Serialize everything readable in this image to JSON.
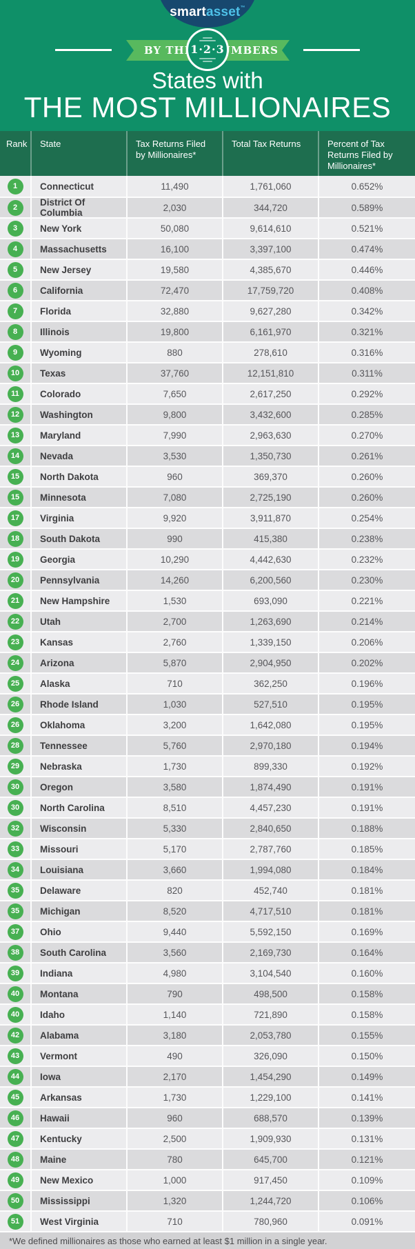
{
  "logo": {
    "smart": "smart",
    "asset": "asset",
    "trademark": "™",
    "dome_color": "#17486e",
    "asset_color": "#4ec1e8"
  },
  "banner": {
    "by_the": "BY THE",
    "numbers": "NUMBERS",
    "circle_text": "1·2·3",
    "ribbon_color": "#58b95e"
  },
  "title": {
    "line1": "States with",
    "line2": "THE MOST MILLIONAIRES"
  },
  "colors": {
    "page_background": "#0f9068",
    "table_header_background": "#1e6e4f",
    "rank_badge": "#47b052",
    "row_light": "#ececee",
    "row_dark": "#dbdbdd",
    "footnote_background": "#d2d2d4"
  },
  "footnote": "*We defined millionaires as those who earned at least $1 million in a single year.",
  "chart_data": {
    "type": "table",
    "title": "States with THE MOST MILLIONAIRES",
    "columns": [
      "Rank",
      "State",
      "Tax Returns Filed by Millionaires*",
      "Total Tax Returns",
      "Percent of Tax Returns Filed by Millionaires*"
    ],
    "rows": [
      [
        "1",
        "Connecticut",
        "11,490",
        "1,761,060",
        "0.652%"
      ],
      [
        "2",
        "District Of Columbia",
        "2,030",
        "344,720",
        "0.589%"
      ],
      [
        "3",
        "New York",
        "50,080",
        "9,614,610",
        "0.521%"
      ],
      [
        "4",
        "Massachusetts",
        "16,100",
        "3,397,100",
        "0.474%"
      ],
      [
        "5",
        "New Jersey",
        "19,580",
        "4,385,670",
        "0.446%"
      ],
      [
        "6",
        "California",
        "72,470",
        "17,759,720",
        "0.408%"
      ],
      [
        "7",
        "Florida",
        "32,880",
        "9,627,280",
        "0.342%"
      ],
      [
        "8",
        "Illinois",
        "19,800",
        "6,161,970",
        "0.321%"
      ],
      [
        "9",
        "Wyoming",
        "880",
        "278,610",
        "0.316%"
      ],
      [
        "10",
        "Texas",
        "37,760",
        "12,151,810",
        "0.311%"
      ],
      [
        "11",
        "Colorado",
        "7,650",
        "2,617,250",
        "0.292%"
      ],
      [
        "12",
        "Washington",
        "9,800",
        "3,432,600",
        "0.285%"
      ],
      [
        "13",
        "Maryland",
        "7,990",
        "2,963,630",
        "0.270%"
      ],
      [
        "14",
        "Nevada",
        "3,530",
        "1,350,730",
        "0.261%"
      ],
      [
        "15",
        "North Dakota",
        "960",
        "369,370",
        "0.260%"
      ],
      [
        "15",
        "Minnesota",
        "7,080",
        "2,725,190",
        "0.260%"
      ],
      [
        "17",
        "Virginia",
        "9,920",
        "3,911,870",
        "0.254%"
      ],
      [
        "18",
        "South Dakota",
        "990",
        "415,380",
        "0.238%"
      ],
      [
        "19",
        "Georgia",
        "10,290",
        "4,442,630",
        "0.232%"
      ],
      [
        "20",
        "Pennsylvania",
        "14,260",
        "6,200,560",
        "0.230%"
      ],
      [
        "21",
        "New Hampshire",
        "1,530",
        "693,090",
        "0.221%"
      ],
      [
        "22",
        "Utah",
        "2,700",
        "1,263,690",
        "0.214%"
      ],
      [
        "23",
        "Kansas",
        "2,760",
        "1,339,150",
        "0.206%"
      ],
      [
        "24",
        "Arizona",
        "5,870",
        "2,904,950",
        "0.202%"
      ],
      [
        "25",
        "Alaska",
        "710",
        "362,250",
        "0.196%"
      ],
      [
        "26",
        "Rhode Island",
        "1,030",
        "527,510",
        "0.195%"
      ],
      [
        "26",
        "Oklahoma",
        "3,200",
        "1,642,080",
        "0.195%"
      ],
      [
        "28",
        "Tennessee",
        "5,760",
        "2,970,180",
        "0.194%"
      ],
      [
        "29",
        "Nebraska",
        "1,730",
        "899,330",
        "0.192%"
      ],
      [
        "30",
        "Oregon",
        "3,580",
        "1,874,490",
        "0.191%"
      ],
      [
        "30",
        "North Carolina",
        "8,510",
        "4,457,230",
        "0.191%"
      ],
      [
        "32",
        "Wisconsin",
        "5,330",
        "2,840,650",
        "0.188%"
      ],
      [
        "33",
        "Missouri",
        "5,170",
        "2,787,760",
        "0.185%"
      ],
      [
        "34",
        "Louisiana",
        "3,660",
        "1,994,080",
        "0.184%"
      ],
      [
        "35",
        "Delaware",
        "820",
        "452,740",
        "0.181%"
      ],
      [
        "35",
        "Michigan",
        "8,520",
        "4,717,510",
        "0.181%"
      ],
      [
        "37",
        "Ohio",
        "9,440",
        "5,592,150",
        "0.169%"
      ],
      [
        "38",
        "South Carolina",
        "3,560",
        "2,169,730",
        "0.164%"
      ],
      [
        "39",
        "Indiana",
        "4,980",
        "3,104,540",
        "0.160%"
      ],
      [
        "40",
        "Montana",
        "790",
        "498,500",
        "0.158%"
      ],
      [
        "40",
        "Idaho",
        "1,140",
        "721,890",
        "0.158%"
      ],
      [
        "42",
        "Alabama",
        "3,180",
        "2,053,780",
        "0.155%"
      ],
      [
        "43",
        "Vermont",
        "490",
        "326,090",
        "0.150%"
      ],
      [
        "44",
        "Iowa",
        "2,170",
        "1,454,290",
        "0.149%"
      ],
      [
        "45",
        "Arkansas",
        "1,730",
        "1,229,100",
        "0.141%"
      ],
      [
        "46",
        "Hawaii",
        "960",
        "688,570",
        "0.139%"
      ],
      [
        "47",
        "Kentucky",
        "2,500",
        "1,909,930",
        "0.131%"
      ],
      [
        "48",
        "Maine",
        "780",
        "645,700",
        "0.121%"
      ],
      [
        "49",
        "New Mexico",
        "1,000",
        "917,450",
        "0.109%"
      ],
      [
        "50",
        "Mississippi",
        "1,320",
        "1,244,720",
        "0.106%"
      ],
      [
        "51",
        "West Virginia",
        "710",
        "780,960",
        "0.091%"
      ]
    ]
  }
}
